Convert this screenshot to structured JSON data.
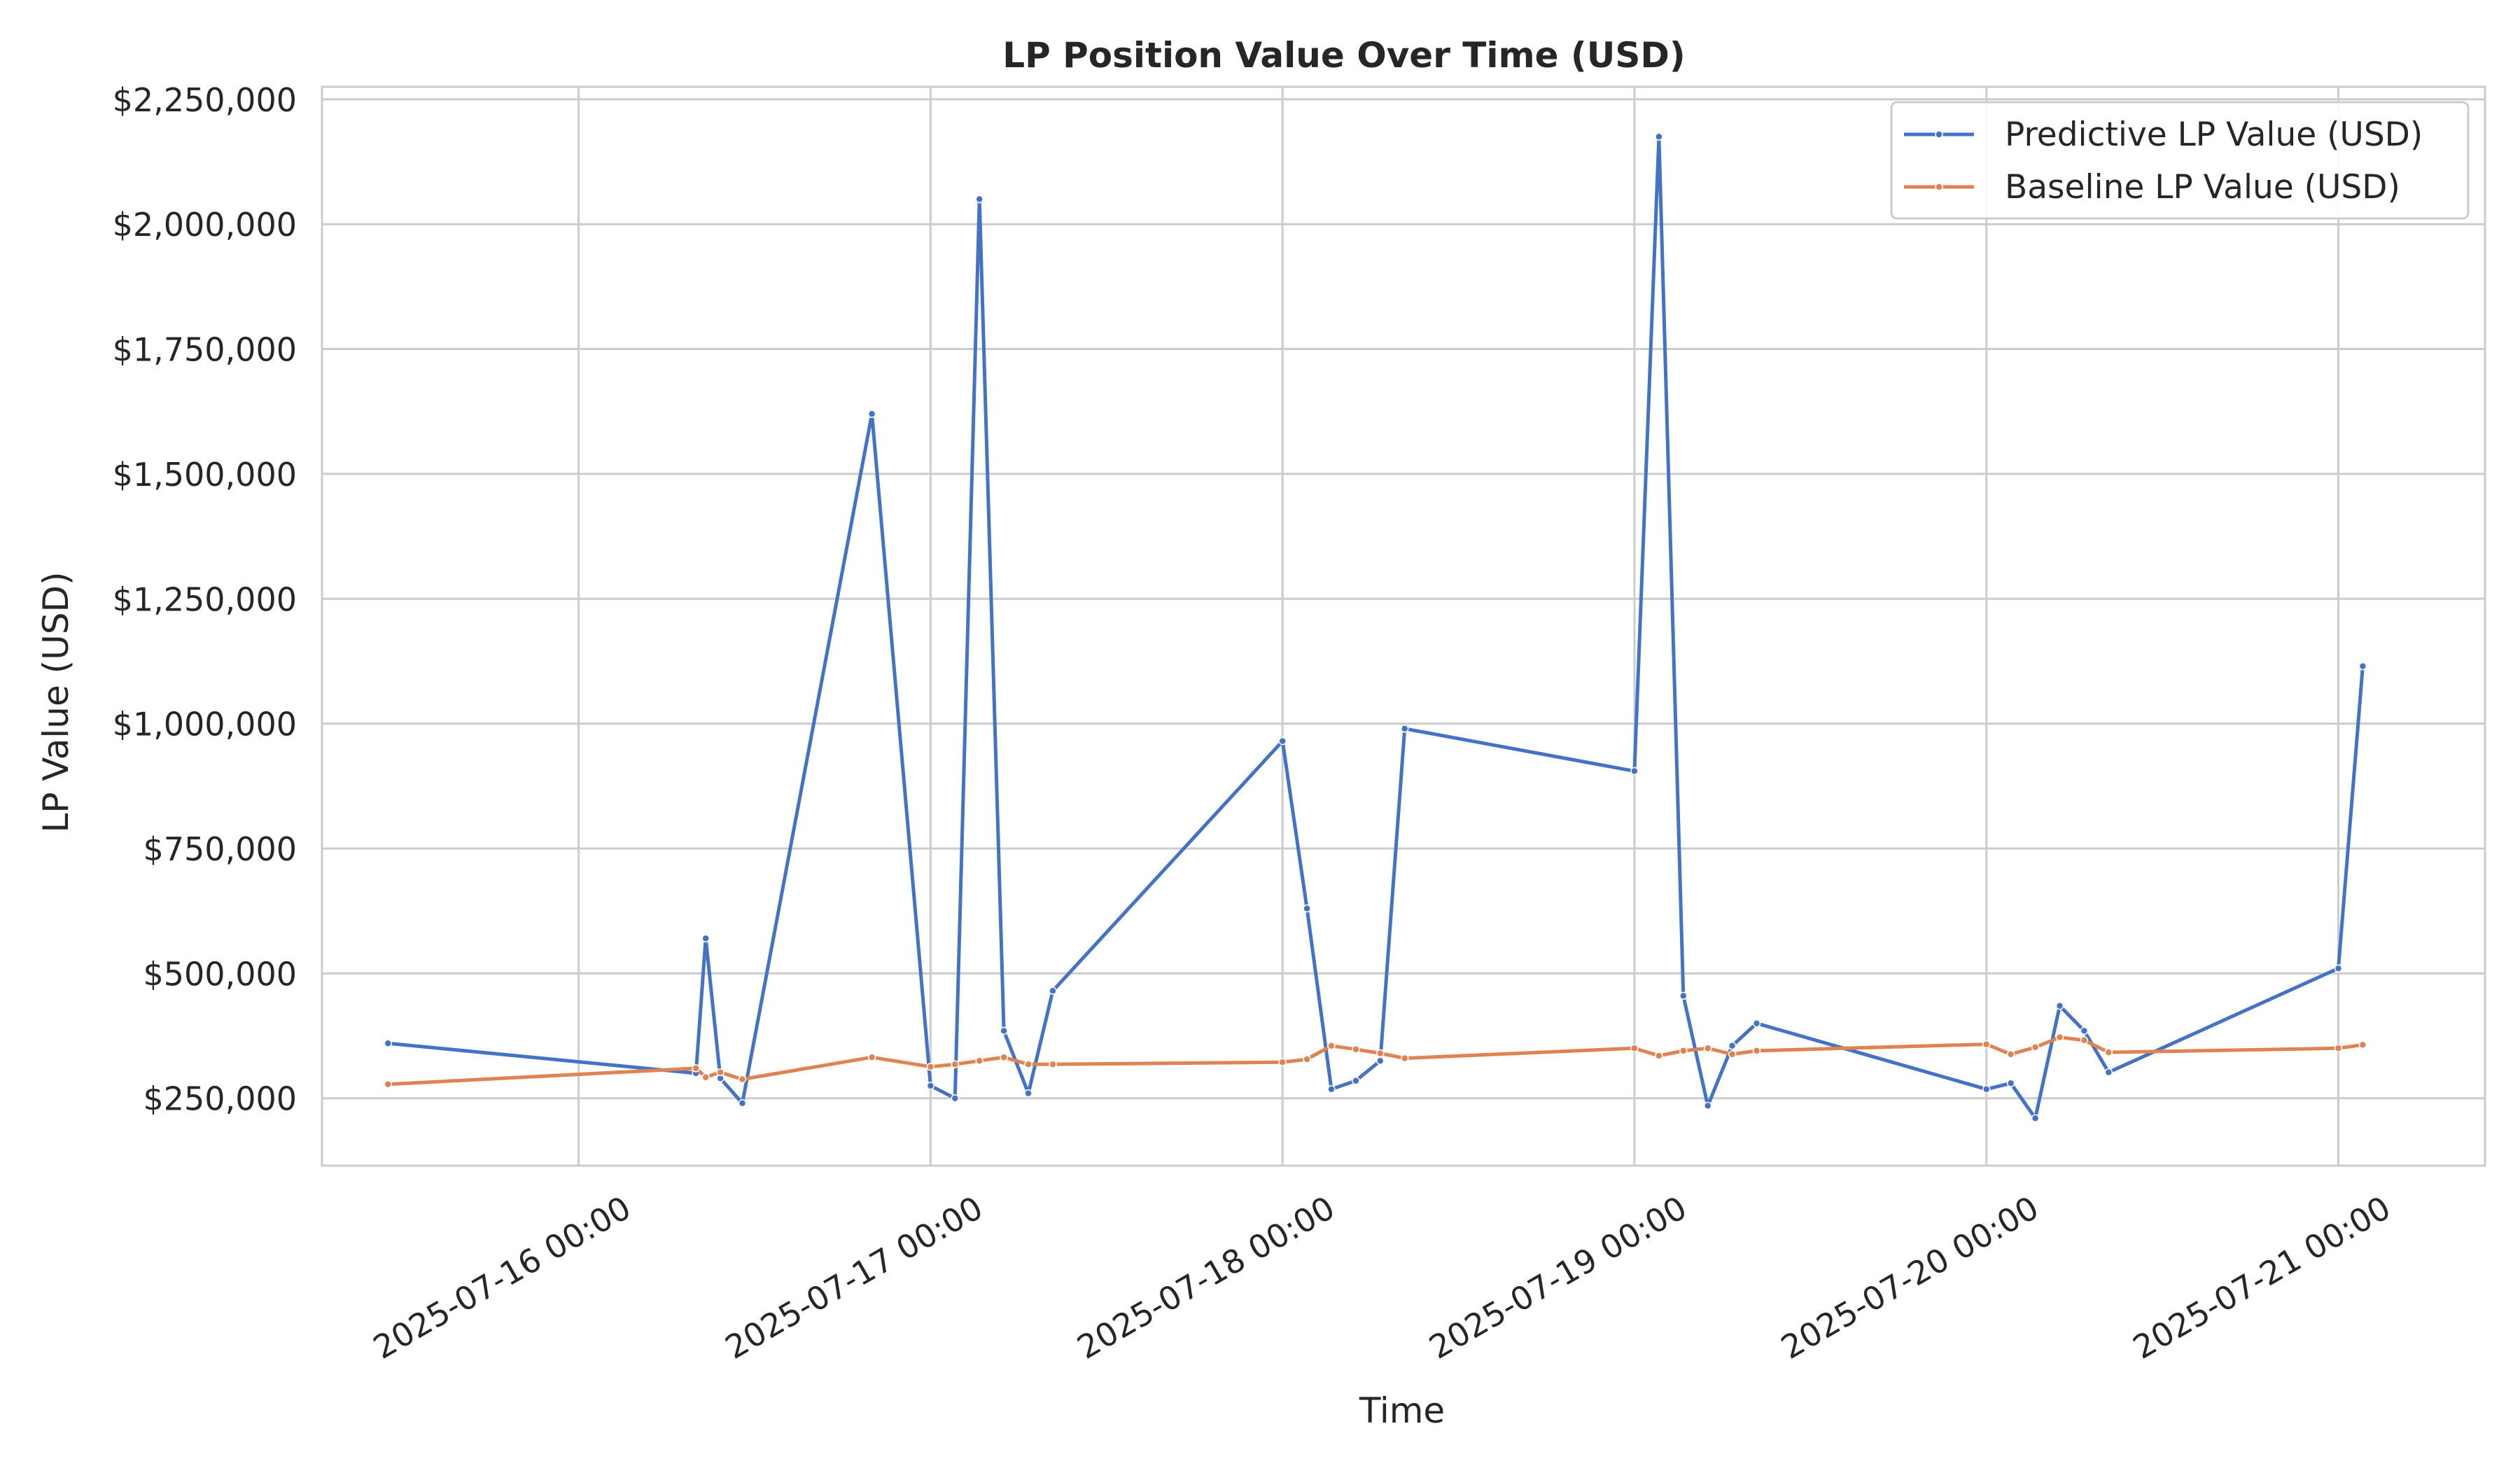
{
  "chart_data": {
    "type": "line",
    "title": "LP Position Value Over Time (USD)",
    "xlabel": "Time",
    "ylabel": "LP Value (USD)",
    "xlim": [
      "2025-07-15T06:30",
      "2025-07-21T10:00"
    ],
    "ylim": [
      115000,
      2275000
    ],
    "x_tick_labels": [
      "2025-07-16 00:00",
      "2025-07-17 00:00",
      "2025-07-18 00:00",
      "2025-07-19 00:00",
      "2025-07-20 00:00",
      "2025-07-21 00:00"
    ],
    "x_ticks": [
      "2025-07-16T00:00",
      "2025-07-17T00:00",
      "2025-07-18T00:00",
      "2025-07-19T00:00",
      "2025-07-20T00:00",
      "2025-07-21T00:00"
    ],
    "y_ticks": [
      250000,
      500000,
      750000,
      1000000,
      1250000,
      1500000,
      1750000,
      2000000,
      2250000
    ],
    "y_tick_labels": [
      "$250,000",
      "$500,000",
      "$750,000",
      "$1,000,000",
      "$1,250,000",
      "$1,500,000",
      "$1,750,000",
      "$2,000,000",
      "$2,250,000"
    ],
    "grid": true,
    "legend_position": "top-right",
    "series": [
      {
        "name": "Predictive LP Value (USD)",
        "color": "#4472c4",
        "points": [
          [
            "2025-07-15T11:00",
            360000
          ],
          [
            "2025-07-16T08:00",
            300000
          ],
          [
            "2025-07-16T08:40",
            570000
          ],
          [
            "2025-07-16T09:40",
            290000
          ],
          [
            "2025-07-16T11:10",
            240000
          ],
          [
            "2025-07-16T20:00",
            1620000
          ],
          [
            "2025-07-17T00:00",
            275000
          ],
          [
            "2025-07-17T01:40",
            250000
          ],
          [
            "2025-07-17T03:20",
            2050000
          ],
          [
            "2025-07-17T05:00",
            385000
          ],
          [
            "2025-07-17T06:40",
            260000
          ],
          [
            "2025-07-17T08:20",
            465000
          ],
          [
            "2025-07-18T00:00",
            965000
          ],
          [
            "2025-07-18T01:40",
            630000
          ],
          [
            "2025-07-18T03:20",
            268000
          ],
          [
            "2025-07-18T05:00",
            285000
          ],
          [
            "2025-07-18T06:40",
            325000
          ],
          [
            "2025-07-18T08:20",
            990000
          ],
          [
            "2025-07-19T00:00",
            905000
          ],
          [
            "2025-07-19T01:40",
            2175000
          ],
          [
            "2025-07-19T03:20",
            455000
          ],
          [
            "2025-07-19T05:00",
            235000
          ],
          [
            "2025-07-19T06:40",
            355000
          ],
          [
            "2025-07-19T08:20",
            400000
          ],
          [
            "2025-07-20T00:00",
            268000
          ],
          [
            "2025-07-20T01:40",
            280000
          ],
          [
            "2025-07-20T03:20",
            210000
          ],
          [
            "2025-07-20T05:00",
            435000
          ],
          [
            "2025-07-20T06:40",
            385000
          ],
          [
            "2025-07-20T08:20",
            302000
          ],
          [
            "2025-07-21T00:00",
            510000
          ],
          [
            "2025-07-21T01:40",
            1115000
          ]
        ]
      },
      {
        "name": "Baseline LP Value (USD)",
        "color": "#dd8452",
        "points": [
          [
            "2025-07-15T11:00",
            278000
          ],
          [
            "2025-07-16T08:00",
            310000
          ],
          [
            "2025-07-16T08:40",
            292000
          ],
          [
            "2025-07-16T09:40",
            302000
          ],
          [
            "2025-07-16T11:10",
            288000
          ],
          [
            "2025-07-16T20:00",
            332000
          ],
          [
            "2025-07-17T00:00",
            313000
          ],
          [
            "2025-07-17T01:40",
            318000
          ],
          [
            "2025-07-17T03:20",
            325000
          ],
          [
            "2025-07-17T05:00",
            332000
          ],
          [
            "2025-07-17T06:40",
            318000
          ],
          [
            "2025-07-17T08:20",
            318000
          ],
          [
            "2025-07-18T00:00",
            322000
          ],
          [
            "2025-07-18T01:40",
            328000
          ],
          [
            "2025-07-18T03:20",
            355000
          ],
          [
            "2025-07-18T05:00",
            348000
          ],
          [
            "2025-07-18T06:40",
            340000
          ],
          [
            "2025-07-18T08:20",
            330000
          ],
          [
            "2025-07-19T00:00",
            350000
          ],
          [
            "2025-07-19T01:40",
            335000
          ],
          [
            "2025-07-19T03:20",
            345000
          ],
          [
            "2025-07-19T05:00",
            350000
          ],
          [
            "2025-07-19T06:40",
            338000
          ],
          [
            "2025-07-19T08:20",
            345000
          ],
          [
            "2025-07-20T00:00",
            358000
          ],
          [
            "2025-07-20T01:40",
            338000
          ],
          [
            "2025-07-20T03:20",
            352000
          ],
          [
            "2025-07-20T05:00",
            372000
          ],
          [
            "2025-07-20T06:40",
            366000
          ],
          [
            "2025-07-20T08:20",
            342000
          ],
          [
            "2025-07-21T00:00",
            350000
          ],
          [
            "2025-07-21T01:40",
            357000
          ]
        ]
      }
    ]
  }
}
